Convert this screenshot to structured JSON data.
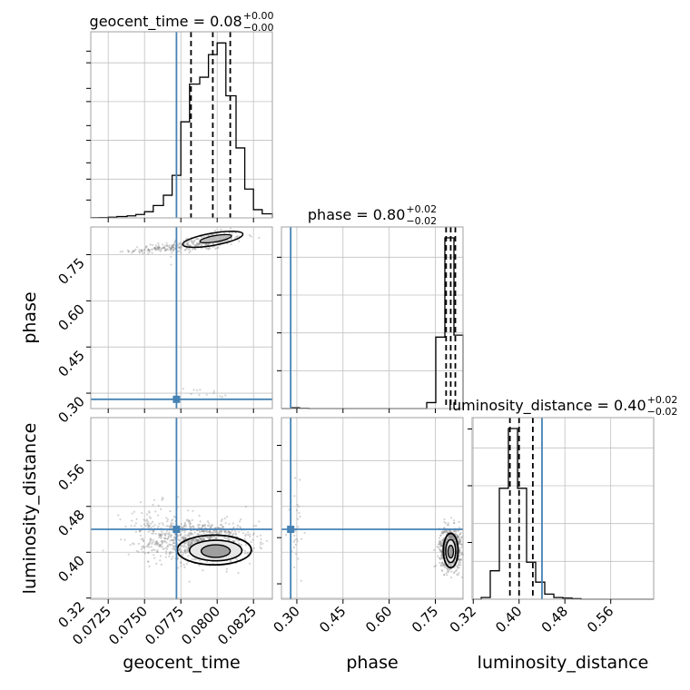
{
  "chart_data": {
    "type": "corner",
    "parameters": [
      "geocent_time",
      "phase",
      "luminosity_distance"
    ],
    "truths": {
      "geocent_time": 0.0772,
      "phase": 0.28,
      "luminosity_distance": 0.44
    },
    "colors": {
      "truth": "#4682b4",
      "hist": "#000000",
      "grid": "#c0c0c0",
      "scatter": "#808080"
    },
    "grid": true,
    "axes": {
      "geocent_time": {
        "range": [
          0.0713,
          0.0838
        ],
        "ticks": [
          0.0725,
          0.075,
          0.0775,
          0.08,
          0.0825
        ],
        "ticklabels": [
          "0.0725",
          "0.0750",
          "0.0775",
          "0.0800",
          "0.0825"
        ]
      },
      "phase": {
        "range": [
          0.25,
          0.84
        ],
        "ticks": [
          0.3,
          0.45,
          0.6,
          0.75
        ],
        "ticklabels": [
          "0.30",
          "0.45",
          "0.60",
          "0.75"
        ]
      },
      "luminosity_distance": {
        "range": [
          0.318,
          0.635
        ],
        "ticks": [
          0.32,
          0.4,
          0.48,
          0.56
        ],
        "ticklabels": [
          "0.32",
          "0.40",
          "0.48",
          "0.56"
        ]
      }
    },
    "xlabels": [
      "geocent_time",
      "phase",
      "luminosity_distance"
    ],
    "ylabels": [
      "",
      "phase",
      "luminosity_distance"
    ],
    "titles": [
      {
        "param": "geocent_time",
        "base": "geocent_time = 0.08",
        "plus": "+0.00",
        "minus": "−0.00"
      },
      {
        "param": "phase",
        "base": "phase = 0.80",
        "plus": "+0.02",
        "minus": "−0.02"
      },
      {
        "param": "luminosity_distance",
        "base": "luminosity_distance = 0.40",
        "plus": "+0.02",
        "minus": "−0.02"
      }
    ],
    "quantiles": {
      "geocent_time": [
        0.0782,
        0.0797,
        0.0809
      ],
      "phase": [
        0.785,
        0.8,
        0.815
      ],
      "luminosity_distance": [
        0.384,
        0.4,
        0.424
      ]
    },
    "histograms": {
      "geocent_time": {
        "edges": [
          0.0713,
          0.0719,
          0.0725,
          0.0731,
          0.0738,
          0.0744,
          0.075,
          0.0756,
          0.0763,
          0.0769,
          0.0775,
          0.0781,
          0.0788,
          0.0794,
          0.08,
          0.0806,
          0.0813,
          0.0819,
          0.0825,
          0.0831,
          0.0838
        ],
        "counts": [
          0.3,
          0.5,
          1,
          2,
          3,
          5,
          9,
          18,
          33,
          62,
          140,
          195,
          205,
          238,
          255,
          178,
          102,
          42,
          12,
          6
        ]
      },
      "phase": {
        "edges": [
          0.25,
          0.2795,
          0.309,
          0.3385,
          0.368,
          0.3975,
          0.427,
          0.4565,
          0.486,
          0.5155,
          0.545,
          0.5745,
          0.604,
          0.6335,
          0.663,
          0.6925,
          0.722,
          0.7515,
          0.781,
          0.8105,
          0.84
        ],
        "counts": [
          0,
          4,
          1,
          0,
          0,
          0,
          0,
          0,
          0,
          0,
          0,
          0,
          0,
          0,
          0,
          0,
          30,
          360,
          860,
          370
        ]
      },
      "luminosity_distance": {
        "edges": [
          0.318,
          0.3339,
          0.3497,
          0.3656,
          0.3814,
          0.3973,
          0.4131,
          0.429,
          0.4448,
          0.4607,
          0.4765,
          0.4924,
          0.5082,
          0.5241,
          0.5399,
          0.5558,
          0.5716,
          0.5875,
          0.6033,
          0.6192,
          0.635
        ],
        "counts": [
          0,
          3,
          50,
          195,
          300,
          195,
          65,
          30,
          9,
          3,
          2,
          1,
          0,
          0,
          0,
          0,
          0,
          0,
          0,
          0
        ]
      }
    }
  }
}
